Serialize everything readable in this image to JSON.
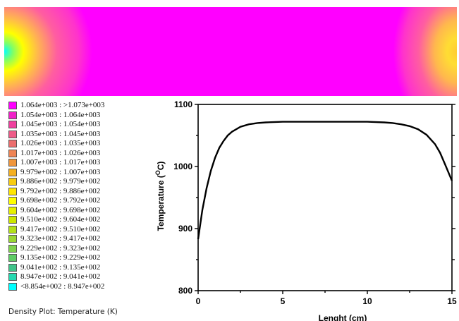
{
  "density_plot": {
    "colors": {
      "fill": "#ff00ff",
      "edge_gradient": [
        "#ff00ff",
        "#ff33cc",
        "#ff5ea0",
        "#ff8c66",
        "#ffb84d",
        "#ffd633",
        "#ffff00",
        "#c8ff33",
        "#80ff66",
        "#33ffb3",
        "#00ffff"
      ]
    }
  },
  "legend": {
    "items": [
      {
        "label": "1.064e+003 : >1.073e+003",
        "color": "#ff00ff"
      },
      {
        "label": "1.054e+003 : 1.064e+003",
        "color": "#f020c8"
      },
      {
        "label": "1.045e+003 : 1.054e+003",
        "color": "#f0409e"
      },
      {
        "label": "1.035e+003 : 1.045e+003",
        "color": "#ee5a88"
      },
      {
        "label": "1.026e+003 : 1.035e+003",
        "color": "#ec6e6e"
      },
      {
        "label": "1.017e+003 : 1.026e+003",
        "color": "#ef8455"
      },
      {
        "label": "1.007e+003 : 1.017e+003",
        "color": "#f0963c"
      },
      {
        "label": "9.979e+002 : 1.007e+003",
        "color": "#f5b020"
      },
      {
        "label": "9.886e+002 : 9.979e+002",
        "color": "#f8cc10"
      },
      {
        "label": "9.792e+002 : 9.886e+002",
        "color": "#ffe600"
      },
      {
        "label": "9.698e+002 : 9.792e+002",
        "color": "#ffff00"
      },
      {
        "label": "9.604e+002 : 9.698e+002",
        "color": "#e6f000"
      },
      {
        "label": "9.510e+002 : 9.604e+002",
        "color": "#cce600"
      },
      {
        "label": "9.417e+002 : 9.510e+002",
        "color": "#b3e01a"
      },
      {
        "label": "9.323e+002 : 9.417e+002",
        "color": "#99d633"
      },
      {
        "label": "9.229e+002 : 9.323e+002",
        "color": "#7fd24d"
      },
      {
        "label": "9.135e+002 : 9.229e+002",
        "color": "#5fcc66"
      },
      {
        "label": "9.041e+002 : 9.135e+002",
        "color": "#40c48a"
      },
      {
        "label": "8.947e+002 : 9.041e+002",
        "color": "#26d9b0"
      },
      {
        "label": "<8.854e+002 : 8.947e+002",
        "color": "#00ffff"
      }
    ],
    "caption": "Density Plot: Temperature (K)"
  },
  "chart_data": {
    "type": "line",
    "xlabel": "Lenght (cm)",
    "ylabel_prefix": "Temperature (",
    "ylabel_sup": "O",
    "ylabel_suffix": "C)",
    "xlim": [
      0,
      15
    ],
    "ylim": [
      800,
      1100
    ],
    "xticks": [
      0,
      5,
      10,
      15
    ],
    "yticks": [
      800,
      900,
      1000,
      1100
    ],
    "grid": false,
    "series": [
      {
        "x": [
          0,
          0.25,
          0.5,
          0.75,
          1.0,
          1.25,
          1.5,
          1.75,
          2.0,
          2.5,
          3.0,
          3.5,
          4.0,
          5.0,
          6.0,
          7.0,
          8.0,
          9.0,
          10.0,
          11.0,
          11.5,
          12.0,
          12.5,
          13.0,
          13.5,
          14.0,
          14.3,
          14.6,
          14.8,
          15.0
        ],
        "y": [
          883,
          930,
          965,
          993,
          1014,
          1030,
          1041,
          1050,
          1056,
          1064,
          1068,
          1070,
          1071,
          1072,
          1072,
          1072,
          1072,
          1072,
          1072,
          1071,
          1070,
          1068,
          1065,
          1060,
          1051,
          1036,
          1022,
          1003,
          990,
          977
        ]
      }
    ]
  }
}
